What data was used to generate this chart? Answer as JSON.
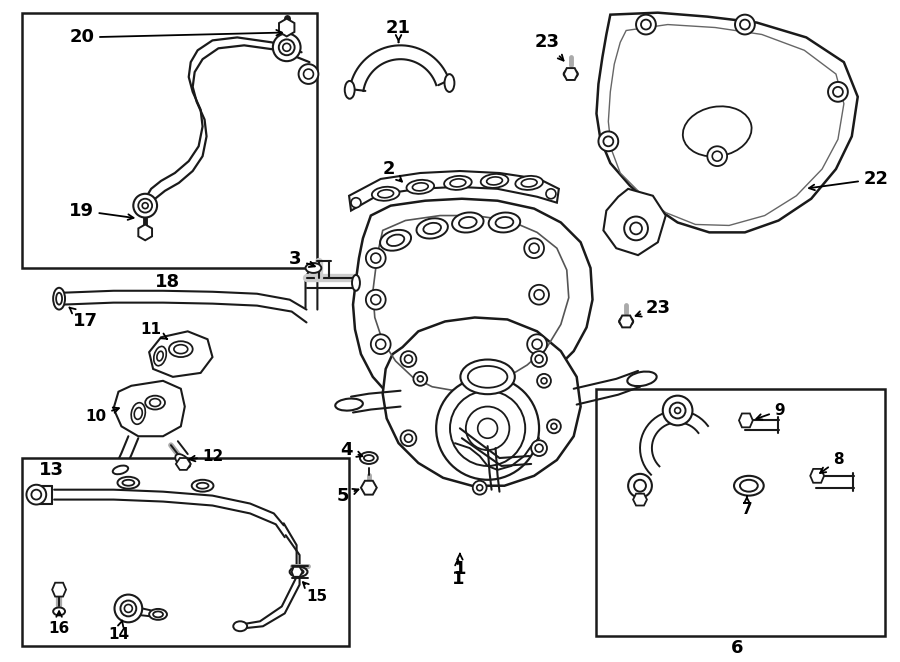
{
  "background_color": "#ffffff",
  "line_color": "#1a1a1a",
  "figsize": [
    9.0,
    6.62
  ],
  "dpi": 100,
  "lw_main": 1.4,
  "lw_thick": 2.0,
  "font_size": 11,
  "font_size_large": 13
}
